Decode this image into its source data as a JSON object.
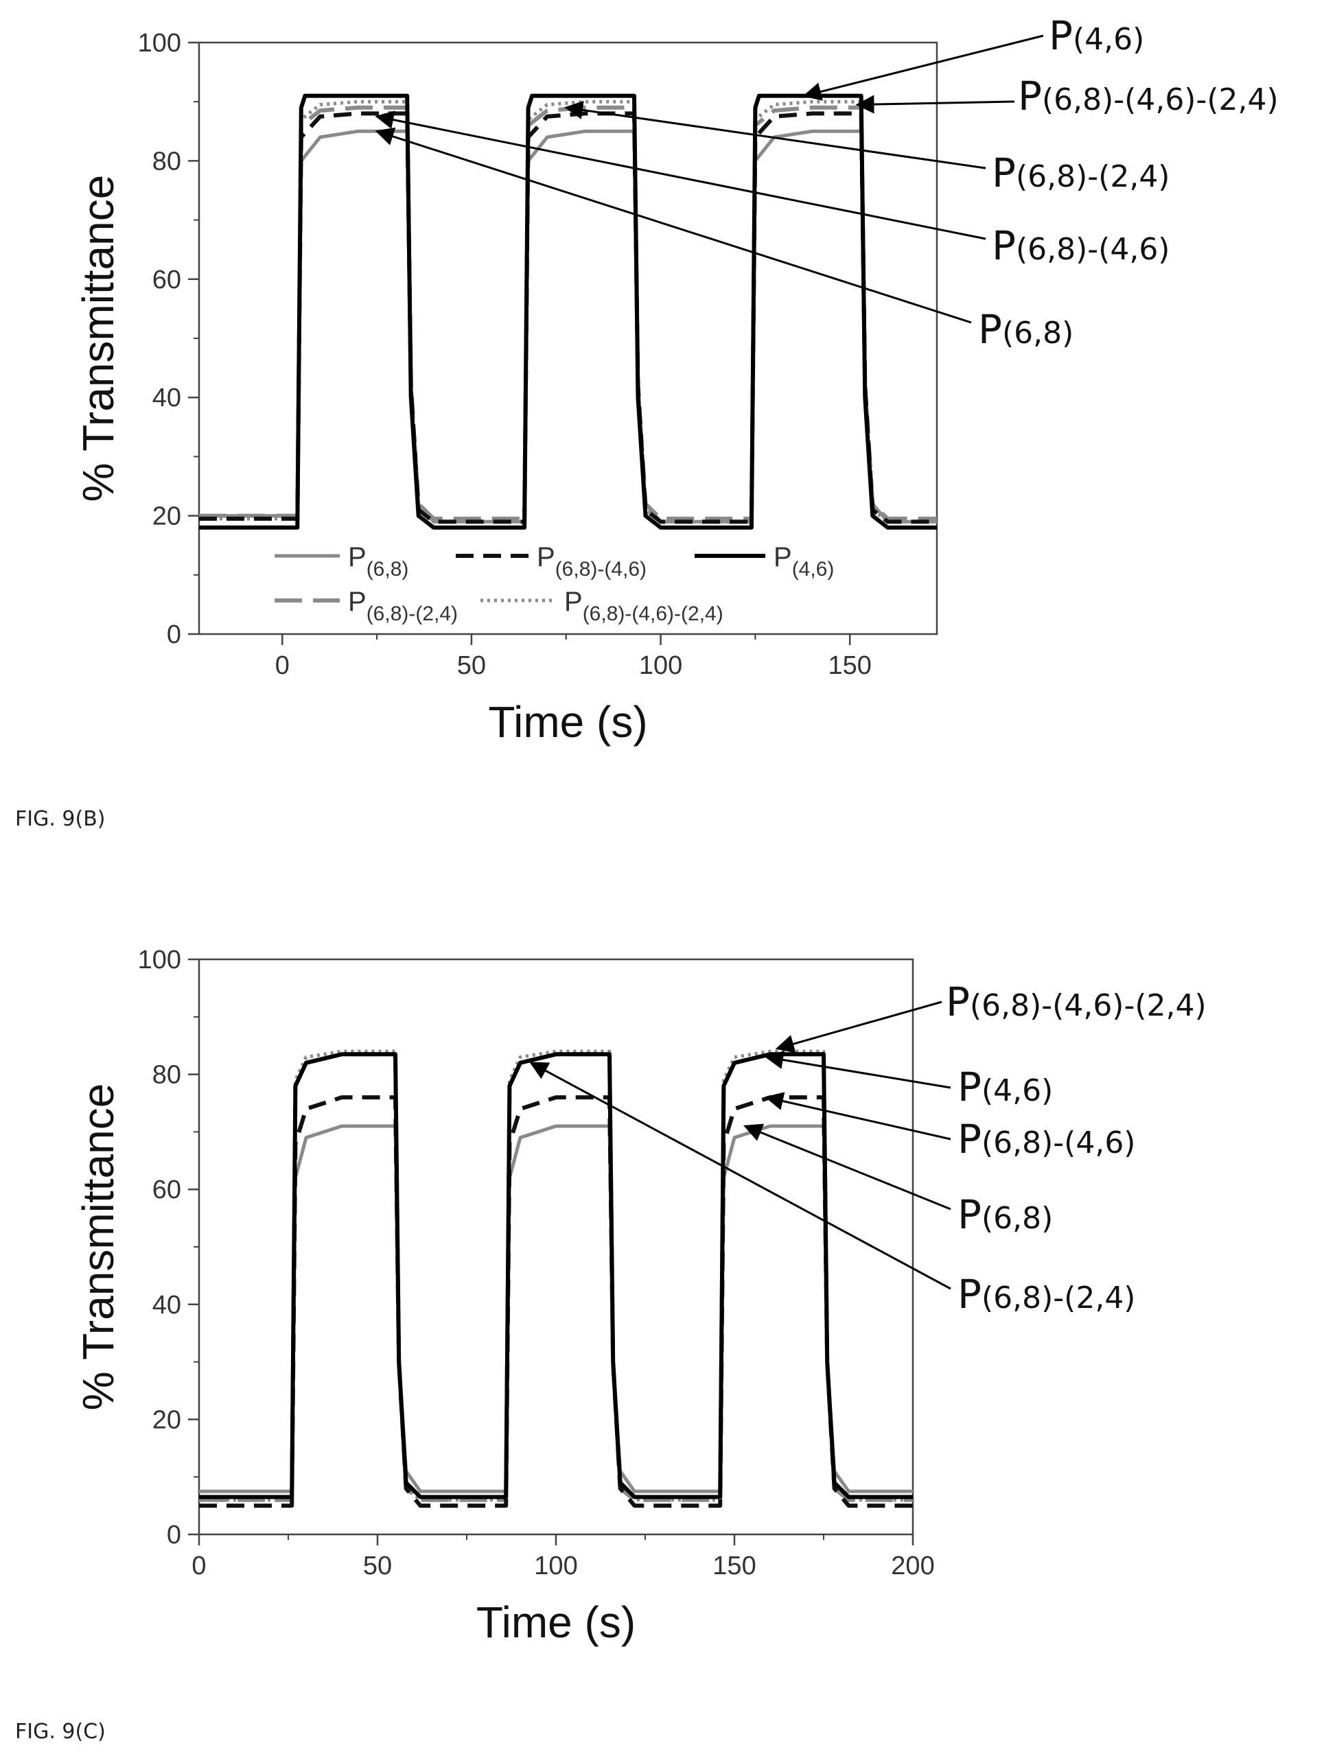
{
  "chart_data": [
    {
      "type": "line",
      "figure_label": "FIG. 9(B)",
      "xlabel": "Time (s)",
      "ylabel": "% Transmittance",
      "xlim": [
        -22,
        173
      ],
      "ylim": [
        0,
        100
      ],
      "xticks": [
        0,
        50,
        100,
        150
      ],
      "yticks": [
        0,
        20,
        40,
        60,
        80,
        100
      ],
      "grid": false,
      "legend_placement": "bottom",
      "series": [
        {
          "name": "P(6,8)",
          "base": "P",
          "sub": "(6,8)",
          "style": "solid",
          "color": "#8a8a8a",
          "x": [
            -22,
            4,
            5,
            10,
            20,
            33,
            34,
            36,
            40,
            64,
            65,
            70,
            80,
            93,
            94,
            96,
            100,
            124,
            125,
            130,
            140,
            153,
            154,
            156,
            160,
            173
          ],
          "y": [
            20,
            20,
            80,
            84,
            85,
            85,
            40,
            22,
            19,
            19,
            80,
            84,
            85,
            85,
            40,
            22,
            19,
            19,
            80,
            84,
            85,
            85,
            40,
            22,
            19,
            19
          ]
        },
        {
          "name": "P(6,8)-(4,6)",
          "base": "P",
          "sub": "(6,8)-(4,6)",
          "style": "dash",
          "color": "#111111",
          "x": [
            -22,
            4,
            5,
            10,
            20,
            33,
            34,
            36,
            40,
            64,
            65,
            70,
            80,
            93,
            94,
            96,
            100,
            124,
            125,
            130,
            140,
            153,
            154,
            156,
            160,
            173
          ],
          "y": [
            19.5,
            19.5,
            84,
            87.5,
            88,
            88,
            42,
            21,
            19,
            19,
            84,
            87.5,
            88,
            88,
            42,
            21,
            19,
            19,
            84,
            87.5,
            88,
            88,
            42,
            21,
            19,
            19
          ]
        },
        {
          "name": "P(4,6)",
          "base": "P",
          "sub": "(4,6)",
          "style": "solid-bold",
          "color": "#000000",
          "x": [
            -22,
            4,
            5,
            6,
            33,
            34,
            36,
            40,
            64,
            65,
            66,
            93,
            94,
            96,
            100,
            124,
            125,
            126,
            153,
            154,
            156,
            160,
            173
          ],
          "y": [
            18,
            18,
            89,
            91,
            91,
            40,
            20,
            18,
            18,
            89,
            91,
            91,
            40,
            20,
            18,
            18,
            89,
            91,
            91,
            40,
            20,
            18,
            18
          ]
        },
        {
          "name": "P(6,8)-(2,4)",
          "base": "P",
          "sub": "(6,8)-(2,4)",
          "style": "longdash",
          "color": "#8a8a8a",
          "x": [
            -22,
            4,
            5,
            10,
            20,
            33,
            34,
            36,
            40,
            64,
            65,
            70,
            80,
            93,
            94,
            96,
            100,
            124,
            125,
            130,
            140,
            153,
            154,
            156,
            160,
            173
          ],
          "y": [
            20,
            20,
            86,
            88.5,
            89,
            89,
            42,
            22,
            19.5,
            19.5,
            86,
            88.5,
            89,
            89,
            42,
            22,
            19.5,
            19.5,
            86,
            88.5,
            89,
            89,
            42,
            22,
            19.5,
            19.5
          ]
        },
        {
          "name": "P(6,8)-(4,6)-(2,4)",
          "base": "P",
          "sub": "(6,8)-(4,6)-(2,4)",
          "style": "dot",
          "color": "#8a8a8a",
          "x": [
            -22,
            4,
            5,
            10,
            20,
            33,
            34,
            36,
            40,
            64,
            65,
            70,
            80,
            93,
            94,
            96,
            100,
            124,
            125,
            130,
            140,
            153,
            154,
            156,
            160,
            173
          ],
          "y": [
            19.5,
            19.5,
            87,
            89.5,
            90,
            90,
            42,
            21,
            19,
            19,
            87,
            89.5,
            90,
            90,
            42,
            21,
            19,
            19,
            87,
            89.5,
            90,
            90,
            42,
            21,
            19,
            19
          ]
        }
      ],
      "annotations": [
        {
          "base": "P",
          "sub": "(4,6)",
          "points_to": [
            138,
            91
          ]
        },
        {
          "base": "P",
          "sub": "(6,8)-(4,6)-(2,4)",
          "points_to": [
            152,
            89.5
          ]
        },
        {
          "base": "P",
          "sub": "(6,8)-(2,4)",
          "points_to": [
            75,
            89
          ]
        },
        {
          "base": "P",
          "sub": "(6,8)-(4,6)",
          "points_to": [
            25,
            87.5
          ]
        },
        {
          "base": "P",
          "sub": "(6,8)",
          "points_to": [
            25,
            85
          ]
        }
      ]
    },
    {
      "type": "line",
      "figure_label": "FIG. 9(C)",
      "xlabel": "Time (s)",
      "ylabel": "% Transmittance",
      "xlim": [
        0,
        200
      ],
      "ylim": [
        0,
        100
      ],
      "xticks": [
        0,
        50,
        100,
        150,
        200
      ],
      "yticks": [
        0,
        20,
        40,
        60,
        80,
        100
      ],
      "grid": false,
      "series": [
        {
          "name": "P(6,8)",
          "style": "solid",
          "color": "#8a8a8a",
          "x": [
            0,
            26,
            27,
            30,
            40,
            55,
            56,
            58,
            62,
            86,
            87,
            90,
            100,
            115,
            116,
            118,
            122,
            146,
            147,
            150,
            160,
            175,
            176,
            178,
            182,
            200
          ],
          "y": [
            7.5,
            7.5,
            62,
            69,
            71,
            71,
            30,
            11,
            7.5,
            7.5,
            62,
            69,
            71,
            71,
            30,
            11,
            7.5,
            7.5,
            62,
            69,
            71,
            71,
            30,
            11,
            7.5,
            7.5
          ]
        },
        {
          "name": "P(6,8)-(4,6)",
          "style": "dash",
          "color": "#111111",
          "x": [
            0,
            26,
            27,
            30,
            40,
            55,
            56,
            58,
            62,
            86,
            87,
            90,
            100,
            115,
            116,
            118,
            122,
            146,
            147,
            150,
            160,
            175,
            176,
            178,
            182,
            200
          ],
          "y": [
            5,
            5,
            68,
            74,
            76,
            76,
            30,
            8,
            5,
            5,
            68,
            74,
            76,
            76,
            30,
            8,
            5,
            5,
            68,
            74,
            76,
            76,
            30,
            8,
            5,
            5
          ]
        },
        {
          "name": "P(4,6)",
          "style": "solid-bold",
          "color": "#000000",
          "x": [
            0,
            26,
            27,
            30,
            40,
            55,
            56,
            58,
            62,
            86,
            87,
            90,
            100,
            115,
            116,
            118,
            122,
            146,
            147,
            150,
            160,
            175,
            176,
            178,
            182,
            200
          ],
          "y": [
            6.5,
            6.5,
            78,
            82,
            83.5,
            83.5,
            30,
            9,
            6.5,
            6.5,
            78,
            82,
            83.5,
            83.5,
            30,
            9,
            6.5,
            6.5,
            78,
            82,
            83.5,
            83.5,
            30,
            9,
            6.5,
            6.5
          ]
        },
        {
          "name": "P(6,8)-(2,4)",
          "style": "longdash",
          "color": "#8a8a8a",
          "x": [
            0,
            26,
            27,
            30,
            40,
            55,
            56,
            58,
            62,
            86,
            87,
            90,
            100,
            115,
            116,
            118,
            122,
            146,
            147,
            150,
            160,
            175,
            176,
            178,
            182,
            200
          ],
          "y": [
            6,
            6,
            78,
            82,
            83.5,
            83.5,
            30,
            8,
            6,
            6,
            78,
            82,
            83.5,
            83.5,
            30,
            8,
            6,
            6,
            78,
            82,
            83.5,
            83.5,
            30,
            8,
            6,
            6
          ]
        },
        {
          "name": "P(6,8)-(4,6)-(2,4)",
          "style": "dot",
          "color": "#8a8a8a",
          "x": [
            0,
            26,
            27,
            30,
            40,
            55,
            56,
            58,
            62,
            86,
            87,
            90,
            100,
            115,
            116,
            118,
            122,
            146,
            147,
            150,
            160,
            175,
            176,
            178,
            182,
            200
          ],
          "y": [
            6,
            6,
            79,
            83,
            84,
            84,
            30,
            8,
            6,
            6,
            79,
            83,
            84,
            84,
            30,
            8,
            6,
            6,
            79,
            83,
            84,
            84,
            30,
            8,
            6,
            6
          ]
        }
      ],
      "annotations": [
        {
          "base": "P",
          "sub": "(6,8)-(4,6)-(2,4)",
          "points_to": [
            162,
            84.5
          ]
        },
        {
          "base": "P",
          "sub": "(4,6)",
          "points_to": [
            159,
            83
          ]
        },
        {
          "base": "P",
          "sub": "(6,8)-(4,6)",
          "points_to": [
            159,
            76
          ]
        },
        {
          "base": "P",
          "sub": "(6,8)",
          "points_to": [
            153,
            71
          ]
        },
        {
          "base": "P",
          "sub": "(6,8)-(2,4)",
          "points_to": [
            93,
            82
          ]
        }
      ]
    }
  ]
}
